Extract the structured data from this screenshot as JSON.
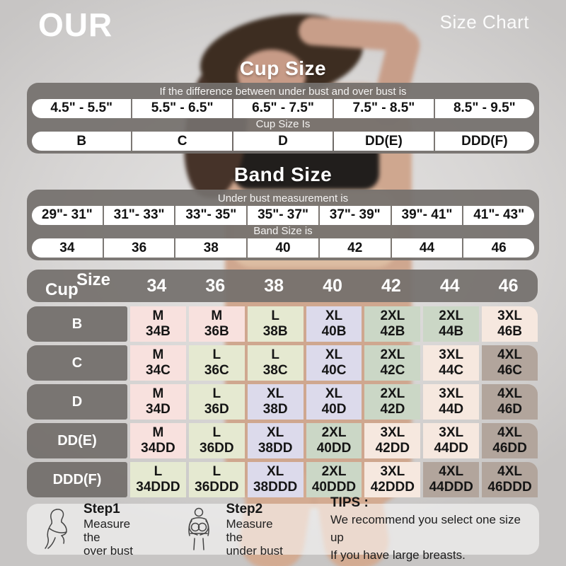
{
  "header": {
    "brand": "OUR",
    "title": "Size Chart"
  },
  "cup_section": {
    "title": "Cup Size",
    "condition_label": "If the  difference between under bust and over bust is",
    "ranges": [
      "4.5\" - 5.5\"",
      "5.5\" - 6.5\"",
      "6.5\" - 7.5\"",
      "7.5\" - 8.5\"",
      "8.5\" - 9.5\""
    ],
    "result_label": "Cup Size Is",
    "cups": [
      "B",
      "C",
      "D",
      "DD(E)",
      "DDD(F)"
    ]
  },
  "band_section": {
    "title": "Band Size",
    "condition_label": "Under bust measurement is",
    "ranges": [
      "29\"- 31\"",
      "31\"- 33\"",
      "33\"- 35\"",
      "35\"- 37\"",
      "37\"- 39\"",
      "39\"- 41\"",
      "41\"- 43\""
    ],
    "result_label": "Band Size is",
    "bands": [
      "34",
      "36",
      "38",
      "40",
      "42",
      "44",
      "46"
    ]
  },
  "matrix": {
    "corner": {
      "top": "Size",
      "bottom": "Cup"
    },
    "columns": [
      "34",
      "36",
      "38",
      "40",
      "42",
      "44",
      "46"
    ],
    "size_colors": {
      "M": "#f8e1de",
      "L": "#e5e9d1",
      "XL": "#dcdaeb",
      "2XL": "#cbd7c6",
      "3XL": "#f6e8df",
      "4XL": "#b2a59c"
    },
    "rows": [
      {
        "cup": "B",
        "cells": [
          {
            "size": "M",
            "code": "34B"
          },
          {
            "size": "M",
            "code": "36B"
          },
          {
            "size": "L",
            "code": "38B"
          },
          {
            "size": "XL",
            "code": "40B"
          },
          {
            "size": "2XL",
            "code": "42B"
          },
          {
            "size": "2XL",
            "code": "44B"
          },
          {
            "size": "3XL",
            "code": "46B"
          }
        ]
      },
      {
        "cup": "C",
        "cells": [
          {
            "size": "M",
            "code": "34C"
          },
          {
            "size": "L",
            "code": "36C"
          },
          {
            "size": "L",
            "code": "38C"
          },
          {
            "size": "XL",
            "code": "40C"
          },
          {
            "size": "2XL",
            "code": "42C"
          },
          {
            "size": "3XL",
            "code": "44C"
          },
          {
            "size": "4XL",
            "code": "46C"
          }
        ]
      },
      {
        "cup": "D",
        "cells": [
          {
            "size": "M",
            "code": "34D"
          },
          {
            "size": "L",
            "code": "36D"
          },
          {
            "size": "XL",
            "code": "38D"
          },
          {
            "size": "XL",
            "code": "40D"
          },
          {
            "size": "2XL",
            "code": "42D"
          },
          {
            "size": "3XL",
            "code": "44D"
          },
          {
            "size": "4XL",
            "code": "46D"
          }
        ]
      },
      {
        "cup": "DD(E)",
        "cells": [
          {
            "size": "M",
            "code": "34DD"
          },
          {
            "size": "L",
            "code": "36DD"
          },
          {
            "size": "XL",
            "code": "38DD"
          },
          {
            "size": "2XL",
            "code": "40DD"
          },
          {
            "size": "3XL",
            "code": "42DD"
          },
          {
            "size": "3XL",
            "code": "44DD"
          },
          {
            "size": "4XL",
            "code": "46DD"
          }
        ]
      },
      {
        "cup": "DDD(F)",
        "cells": [
          {
            "size": "L",
            "code": "34DDD"
          },
          {
            "size": "L",
            "code": "36DDD"
          },
          {
            "size": "XL",
            "code": "38DDD"
          },
          {
            "size": "2XL",
            "code": "40DDD"
          },
          {
            "size": "3XL",
            "code": "42DDD"
          },
          {
            "size": "4XL",
            "code": "44DDD"
          },
          {
            "size": "4XL",
            "code": "46DDD"
          }
        ]
      }
    ]
  },
  "footer": {
    "steps": [
      {
        "label": "Step1",
        "line1": "Measure the",
        "line2": "over bust"
      },
      {
        "label": "Step2",
        "line1": "Measure the",
        "line2": "under bust"
      }
    ],
    "tips": {
      "label": "TIPS :",
      "line1": "We recommend you select one size up",
      "line2": "If you have large breasts."
    }
  },
  "chart_data": [
    {
      "type": "table",
      "title": "Cup Size",
      "note": "If the  difference between under bust and over bust is",
      "columns": [
        "4.5\" - 5.5\"",
        "5.5\" - 6.5\"",
        "6.5\" - 7.5\"",
        "7.5\" - 8.5\"",
        "8.5\" - 9.5\""
      ],
      "result_label": "Cup Size Is",
      "values": [
        "B",
        "C",
        "D",
        "DD(E)",
        "DDD(F)"
      ]
    },
    {
      "type": "table",
      "title": "Band Size",
      "note": "Under bust measurement is",
      "columns": [
        "29\"- 31\"",
        "31\"- 33\"",
        "33\"- 35\"",
        "35\"- 37\"",
        "37\"- 39\"",
        "39\"- 41\"",
        "41\"- 43\""
      ],
      "result_label": "Band Size is",
      "values": [
        "34",
        "36",
        "38",
        "40",
        "42",
        "44",
        "46"
      ]
    },
    {
      "type": "table",
      "title": "Cup x Band size matrix",
      "columns": [
        "34",
        "36",
        "38",
        "40",
        "42",
        "44",
        "46"
      ],
      "row_labels": [
        "B",
        "C",
        "D",
        "DD(E)",
        "DDD(F)"
      ],
      "values": [
        [
          "M 34B",
          "M 36B",
          "L 38B",
          "XL 40B",
          "2XL 42B",
          "2XL 44B",
          "3XL 46B"
        ],
        [
          "M 34C",
          "L 36C",
          "L 38C",
          "XL 40C",
          "2XL 42C",
          "3XL 44C",
          "4XL 46C"
        ],
        [
          "M 34D",
          "L 36D",
          "XL 38D",
          "XL 40D",
          "2XL 42D",
          "3XL 44D",
          "4XL 46D"
        ],
        [
          "M 34DD",
          "L 36DD",
          "XL 38DD",
          "2XL 40DD",
          "3XL 42DD",
          "3XL 44DD",
          "4XL 46DD"
        ],
        [
          "L 34DDD",
          "L 36DDD",
          "XL 38DDD",
          "2XL 40DDD",
          "3XL 42DDD",
          "4XL 44DDD",
          "4XL 46DDD"
        ]
      ]
    }
  ]
}
